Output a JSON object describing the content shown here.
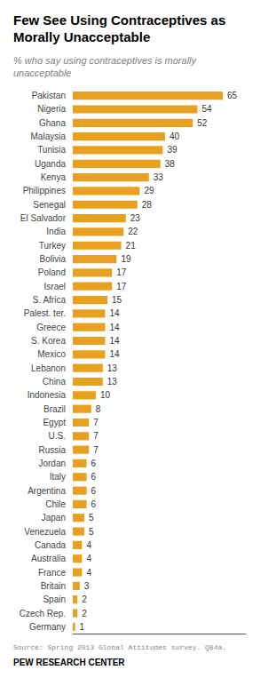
{
  "chart_data": {
    "type": "bar",
    "orientation": "horizontal",
    "title": "Few See Using Contraceptives as\nMorally Unacceptable",
    "subtitle": "% who say using contraceptives is morally\nunacceptable",
    "annotations": [
      "Source: Spring 2013 Global Attitudes survey. Q84a.",
      "PEW RESEARCH CENTER"
    ],
    "categories": [
      "Pakistan",
      "Nigeria",
      "Ghana",
      "Malaysia",
      "Tunisia",
      "Uganda",
      "Kenya",
      "Philippines",
      "Senegal",
      "El Salvador",
      "India",
      "Turkey",
      "Bolivia",
      "Poland",
      "Israel",
      "S. Africa",
      "Palest. ter.",
      "Greece",
      "S. Korea",
      "Mexico",
      "Lebanon",
      "China",
      "Indonesia",
      "Brazil",
      "Egypt",
      "U.S.",
      "Russia",
      "Jordan",
      "Italy",
      "Argentina",
      "Chile",
      "Japan",
      "Venezuela",
      "Canada",
      "Australia",
      "France",
      "Britain",
      "Spain",
      "Czech Rep.",
      "Germany"
    ],
    "values": [
      65,
      54,
      52,
      40,
      39,
      38,
      33,
      29,
      28,
      23,
      22,
      21,
      19,
      17,
      17,
      15,
      14,
      14,
      14,
      14,
      13,
      13,
      10,
      8,
      7,
      7,
      7,
      6,
      6,
      6,
      6,
      5,
      5,
      4,
      4,
      4,
      3,
      2,
      2,
      1
    ],
    "color": "#E8A020",
    "xlim": [
      0,
      75
    ],
    "grid": false,
    "data_labels": true,
    "tick_labels": "y"
  }
}
